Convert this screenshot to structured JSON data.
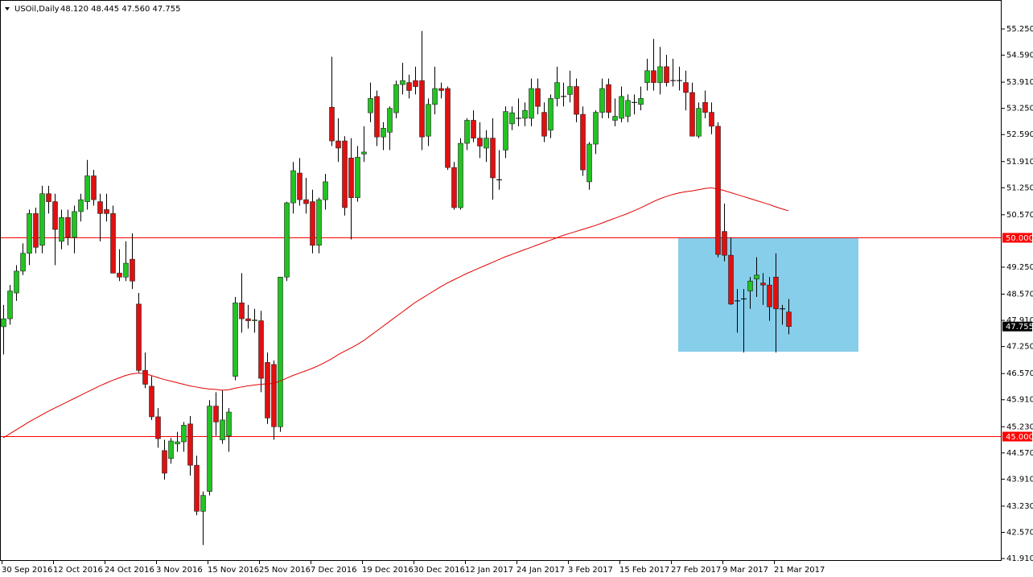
{
  "chart_data": {
    "type": "candlestick",
    "title": "USOil,Daily",
    "ohlc_text": "48.120 48.445 47.560 47.755",
    "categories": [
      "30 Sep 2016",
      null,
      null,
      null,
      null,
      null,
      null,
      null,
      "12 Oct 2016",
      null,
      null,
      null,
      null,
      null,
      null,
      null,
      "24 Oct 2016",
      null,
      null,
      null,
      null,
      null,
      null,
      null,
      "3 Nov 2016",
      null,
      null,
      null,
      null,
      null,
      null,
      null,
      "15 Nov 2016",
      null,
      null,
      null,
      null,
      null,
      null,
      null,
      "25 Nov 2016",
      null,
      null,
      null,
      null,
      null,
      null,
      null,
      "7 Dec 2016",
      null,
      null,
      null,
      null,
      null,
      null,
      null,
      "19 Dec 2016",
      null,
      null,
      null,
      null,
      null,
      null,
      null,
      "30 Dec 2016",
      null,
      null,
      null,
      null,
      null,
      null,
      null,
      "12 Jan 2017",
      null,
      null,
      null,
      null,
      null,
      null,
      null,
      "24 Jan 2017",
      null,
      null,
      null,
      null,
      null,
      null,
      null,
      "3 Feb 2017",
      null,
      null,
      null,
      null,
      null,
      null,
      null,
      "15 Feb 2017",
      null,
      null,
      null,
      null,
      null,
      null,
      null,
      "27 Feb 2017",
      null,
      null,
      null,
      null,
      null,
      null,
      null,
      "9 Mar 2017",
      null,
      null,
      null,
      null,
      null,
      null,
      null,
      "21 Mar 2017",
      null,
      null
    ],
    "open": [
      47.75,
      47.95,
      48.6,
      49.15,
      49.6,
      50.6,
      49.8,
      51.1,
      50.9,
      49.9,
      50.5,
      50.0,
      50.65,
      50.9,
      51.55,
      50.9,
      50.7,
      50.6,
      49.1,
      49.0,
      49.45,
      48.32,
      46.65,
      46.25,
      45.48,
      44.63,
      44.43,
      44.8,
      44.85,
      45.3,
      44.26,
      43.1,
      43.6,
      45.75,
      44.9,
      45.0,
      46.5,
      48.35,
      47.95,
      47.9,
      47.9,
      46.85,
      46.8,
      45.23,
      49.0,
      50.87,
      51.62,
      50.95,
      50.9,
      49.8,
      50.95,
      53.28,
      52.43,
      52.43,
      52.0,
      51.0,
      52.1,
      53.14,
      53.55,
      52.53,
      52.65,
      53.14,
      53.85,
      53.9,
      53.95,
      53.95,
      52.55,
      53.35,
      53.75,
      53.75,
      51.76,
      50.75,
      52.37,
      52.95,
      52.5,
      52.25,
      52.5,
      51.45,
      52.2,
      52.86,
      53.0,
      53.0,
      53.0,
      53.75,
      53.15,
      52.7,
      53.5,
      53.55,
      53.6,
      53.8,
      53.1,
      51.4,
      52.35,
      53.15,
      53.85,
      52.95,
      53.0,
      53.05,
      53.4,
      53.35,
      53.9,
      54.2,
      53.9,
      54.3,
      53.95,
      53.95,
      53.9,
      53.65,
      52.55,
      53.4,
      53.15,
      52.8,
      50.15,
      49.55,
      48.4,
      48.45,
      48.65,
      48.95,
      48.85,
      48.8,
      49.0,
      48.2,
      48.12
    ],
    "high": [
      48.3,
      48.8,
      49.3,
      49.85,
      50.7,
      50.75,
      51.3,
      51.3,
      51.1,
      50.7,
      50.7,
      50.8,
      51.1,
      51.95,
      51.7,
      51.1,
      51.1,
      50.8,
      49.7,
      49.9,
      50.1,
      48.6,
      47.1,
      46.5,
      45.7,
      44.9,
      44.95,
      45.1,
      45.35,
      45.5,
      44.5,
      43.6,
      45.9,
      46.1,
      46.15,
      45.7,
      48.5,
      49.1,
      48.3,
      48.2,
      48.15,
      47.1,
      46.9,
      49.0,
      50.9,
      51.9,
      52.0,
      51.5,
      51.2,
      51.0,
      51.6,
      54.55,
      53.0,
      52.55,
      52.5,
      52.3,
      52.8,
      53.9,
      53.7,
      52.9,
      53.3,
      53.95,
      54.4,
      54.1,
      54.3,
      55.2,
      53.5,
      54.3,
      53.9,
      53.8,
      51.9,
      52.5,
      53.0,
      53.2,
      52.9,
      52.7,
      53.0,
      52.2,
      53.3,
      53.3,
      53.5,
      53.4,
      54.0,
      54.0,
      53.4,
      53.6,
      54.3,
      53.9,
      54.2,
      54.0,
      53.3,
      52.4,
      53.2,
      54.0,
      54.0,
      53.5,
      53.8,
      53.6,
      53.6,
      53.8,
      54.5,
      55.0,
      54.8,
      54.6,
      54.5,
      54.3,
      54.2,
      53.9,
      53.4,
      53.7,
      53.4,
      52.9,
      50.85,
      50.0,
      48.7,
      48.7,
      49.0,
      49.5,
      49.1,
      49.0,
      49.6,
      48.3,
      48.445
    ],
    "low": [
      47.05,
      47.8,
      48.4,
      49.05,
      49.3,
      49.6,
      49.6,
      50.6,
      49.3,
      49.7,
      49.8,
      49.6,
      50.4,
      50.7,
      50.8,
      49.9,
      50.4,
      49.1,
      48.9,
      48.9,
      48.7,
      46.6,
      46.2,
      45.4,
      44.7,
      43.9,
      44.3,
      44.6,
      44.6,
      44.0,
      43.0,
      42.25,
      43.5,
      45.0,
      44.8,
      44.6,
      46.4,
      47.6,
      47.7,
      47.6,
      46.1,
      45.3,
      44.9,
      45.1,
      48.9,
      50.6,
      50.8,
      50.6,
      49.6,
      49.6,
      50.7,
      52.3,
      51.9,
      50.55,
      49.95,
      50.9,
      51.9,
      52.9,
      52.3,
      52.2,
      52.2,
      53.0,
      53.6,
      53.5,
      53.6,
      52.2,
      52.3,
      53.1,
      53.5,
      51.7,
      50.7,
      50.7,
      52.2,
      52.4,
      52.0,
      51.9,
      50.95,
      51.2,
      52.0,
      52.7,
      52.8,
      52.8,
      52.8,
      53.1,
      52.4,
      52.5,
      53.3,
      53.3,
      53.4,
      52.9,
      51.55,
      51.2,
      52.1,
      53.0,
      53.0,
      52.8,
      52.9,
      52.9,
      53.1,
      53.2,
      53.7,
      53.7,
      53.6,
      53.8,
      53.8,
      53.7,
      53.2,
      52.55,
      52.5,
      53.0,
      52.6,
      49.5,
      49.4,
      48.3,
      47.6,
      47.1,
      48.2,
      48.5,
      48.3,
      47.9,
      47.1,
      47.8,
      47.56
    ],
    "close": [
      47.95,
      48.65,
      49.15,
      49.6,
      50.6,
      49.75,
      51.1,
      50.9,
      50.2,
      50.5,
      50.0,
      50.65,
      50.95,
      51.55,
      50.95,
      50.6,
      50.6,
      49.1,
      49.0,
      49.35,
      48.9,
      46.65,
      46.3,
      45.48,
      44.93,
      44.06,
      44.87,
      44.85,
      45.27,
      44.26,
      43.1,
      43.5,
      45.75,
      45.35,
      45.4,
      45.6,
      48.35,
      47.95,
      47.9,
      47.92,
      46.45,
      45.45,
      45.23,
      49.0,
      50.87,
      51.68,
      50.95,
      50.85,
      49.8,
      50.95,
      51.4,
      52.43,
      52.25,
      50.75,
      51.0,
      52.02,
      52.15,
      53.5,
      52.53,
      52.75,
      53.25,
      53.85,
      53.95,
      53.7,
      53.8,
      52.53,
      53.35,
      53.75,
      53.7,
      51.76,
      50.75,
      52.37,
      52.95,
      52.5,
      52.3,
      52.5,
      51.5,
      51.45,
      53.17,
      53.14,
      53.0,
      53.2,
      53.75,
      53.3,
      52.55,
      53.5,
      53.9,
      53.55,
      53.8,
      53.1,
      51.7,
      52.35,
      53.15,
      53.75,
      53.15,
      53.05,
      53.55,
      53.45,
      53.4,
      53.5,
      54.2,
      53.9,
      54.3,
      53.9,
      53.95,
      53.95,
      53.65,
      52.55,
      53.25,
      53.15,
      52.8,
      49.57,
      49.55,
      48.32,
      48.4,
      48.45,
      48.9,
      49.05,
      48.8,
      48.25,
      48.2,
      48.2,
      47.755
    ],
    "up_color": "#22c322",
    "down_color": "#e01010",
    "ma": {
      "color": "#e00000",
      "values": [
        44.95,
        45.05,
        45.15,
        45.25,
        45.35,
        45.44,
        45.53,
        45.62,
        45.7,
        45.78,
        45.86,
        45.94,
        46.02,
        46.1,
        46.18,
        46.26,
        46.33,
        46.4,
        46.46,
        46.52,
        46.56,
        46.58,
        46.57,
        46.52,
        46.47,
        46.42,
        46.38,
        46.34,
        46.3,
        46.26,
        46.23,
        46.2,
        46.18,
        46.17,
        46.15,
        46.16,
        46.2,
        46.23,
        46.26,
        46.28,
        46.3,
        46.31,
        46.32,
        46.38,
        46.45,
        46.52,
        46.58,
        46.64,
        46.7,
        46.77,
        46.85,
        46.94,
        47.04,
        47.13,
        47.21,
        47.3,
        47.4,
        47.52,
        47.64,
        47.76,
        47.88,
        48.0,
        48.12,
        48.24,
        48.36,
        48.46,
        48.56,
        48.66,
        48.76,
        48.85,
        48.93,
        49.01,
        49.09,
        49.16,
        49.23,
        49.3,
        49.37,
        49.44,
        49.51,
        49.57,
        49.63,
        49.69,
        49.75,
        49.81,
        49.87,
        49.93,
        49.99,
        50.05,
        50.1,
        50.15,
        50.2,
        50.25,
        50.3,
        50.36,
        50.42,
        50.48,
        50.54,
        50.6,
        50.67,
        50.74,
        50.82,
        50.9,
        50.97,
        51.03,
        51.08,
        51.12,
        51.15,
        51.17,
        51.2,
        51.23,
        51.25,
        51.22,
        51.18,
        51.13,
        51.08,
        51.03,
        50.98,
        50.93,
        50.88,
        50.83,
        50.77,
        50.72,
        50.67
      ]
    },
    "hlines": [
      {
        "value": 50,
        "label": "50.000"
      },
      {
        "value": 45,
        "label": "45.000"
      }
    ],
    "hline_color": "#ff0000",
    "zone": {
      "top": 50,
      "bottom": 47.12,
      "color": "#87ceeb"
    },
    "last_price": {
      "value": 47.755,
      "label": "47.755"
    },
    "ylim": [
      41.85,
      55.98
    ],
    "yticks": [
      {
        "value": 55.25,
        "label": "55.250"
      },
      {
        "value": 54.59,
        "label": "54.590"
      },
      {
        "value": 53.91,
        "label": "53.910"
      },
      {
        "value": 53.25,
        "label": "53.250"
      },
      {
        "value": 52.59,
        "label": "52.590"
      },
      {
        "value": 51.91,
        "label": "51.910"
      },
      {
        "value": 51.25,
        "label": "51.250"
      },
      {
        "value": 50.57,
        "label": "50.570"
      },
      {
        "value": 49.25,
        "label": "49.250"
      },
      {
        "value": 48.57,
        "label": "48.570"
      },
      {
        "value": 47.91,
        "label": "47.910"
      },
      {
        "value": 47.25,
        "label": "47.250"
      },
      {
        "value": 46.57,
        "label": "46.570"
      },
      {
        "value": 45.91,
        "label": "45.910"
      },
      {
        "value": 45.23,
        "label": "45.230"
      },
      {
        "value": 44.57,
        "label": "44.570"
      },
      {
        "value": 43.91,
        "label": "43.910"
      },
      {
        "value": 43.23,
        "label": "43.230"
      },
      {
        "value": 42.57,
        "label": "42.570"
      },
      {
        "value": 41.91,
        "label": "41.910"
      }
    ]
  }
}
